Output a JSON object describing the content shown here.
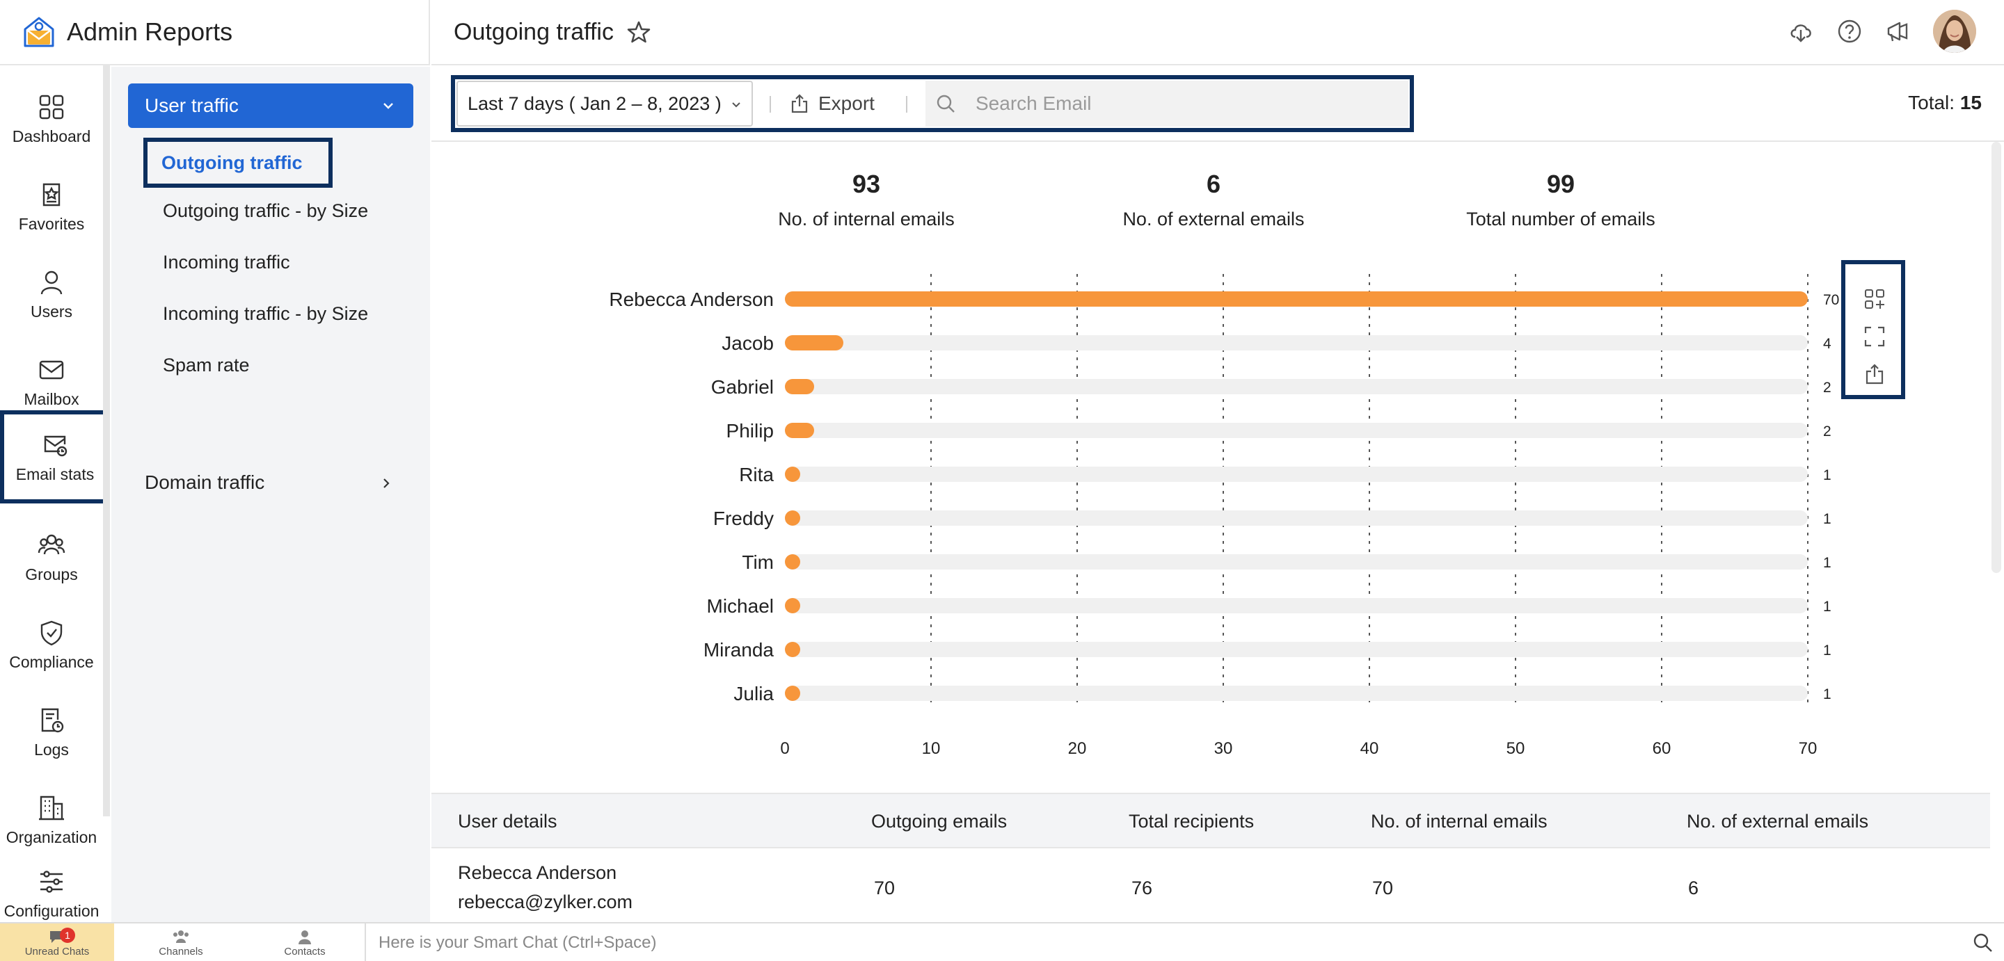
{
  "app": {
    "title": "Admin Reports"
  },
  "header": {
    "page_title": "Outgoing traffic",
    "icons": [
      "download-icon",
      "help-icon",
      "announcement-icon"
    ]
  },
  "rail": {
    "items": [
      {
        "label": "Dashboard",
        "icon": "grid-icon"
      },
      {
        "label": "Favorites",
        "icon": "favorites-icon"
      },
      {
        "label": "Users",
        "icon": "user-icon"
      },
      {
        "label": "Mailbox",
        "icon": "mailbox-icon"
      },
      {
        "label": "Email stats",
        "icon": "email-stats-icon",
        "active": true
      },
      {
        "label": "Groups",
        "icon": "groups-icon"
      },
      {
        "label": "Compliance",
        "icon": "shield-icon"
      },
      {
        "label": "Logs",
        "icon": "logs-icon"
      },
      {
        "label": "Organization",
        "icon": "building-icon"
      },
      {
        "label": "Configuration",
        "icon": "sliders-icon"
      }
    ]
  },
  "subnav": {
    "group": "User traffic",
    "items": [
      "Outgoing traffic",
      "Outgoing traffic - by Size",
      "Incoming traffic",
      "Incoming traffic - by Size",
      "Spam rate"
    ],
    "active": "Outgoing traffic",
    "domain": "Domain traffic"
  },
  "filters": {
    "date_range": "Last 7 days ( Jan 2 – 8, 2023 )",
    "export_label": "Export",
    "search_placeholder": "Search Email",
    "total_label": "Total:",
    "total_value": "15"
  },
  "stats": [
    {
      "value": "93",
      "label": "No. of internal emails"
    },
    {
      "value": "6",
      "label": "No. of external emails"
    },
    {
      "value": "99",
      "label": "Total number of emails"
    }
  ],
  "chart_data": {
    "type": "bar",
    "orientation": "horizontal",
    "categories": [
      "Rebecca Anderson",
      "Jacob",
      "Gabriel",
      "Philip",
      "Rita",
      "Freddy",
      "Tim",
      "Michael",
      "Miranda",
      "Julia"
    ],
    "values": [
      70,
      4,
      2,
      2,
      1,
      1,
      1,
      1,
      1,
      1
    ],
    "xlim": [
      0,
      70
    ],
    "xticks": [
      0,
      10,
      20,
      30,
      40,
      50,
      60,
      70
    ],
    "grid": true,
    "bar_color": "#f7963b",
    "track_color": "#f0f0f0",
    "tools": [
      "add-widget-icon",
      "fullscreen-icon",
      "share-icon"
    ]
  },
  "table": {
    "columns": [
      "User details",
      "Outgoing emails",
      "Total recipients",
      "No. of internal emails",
      "No. of external emails"
    ],
    "rows": [
      {
        "name": "Rebecca Anderson",
        "email": "rebecca@zylker.com",
        "outgoing": "70",
        "recipients": "76",
        "internal": "70",
        "external": "6"
      }
    ]
  },
  "bottombar": {
    "unread_label": "Unread Chats",
    "unread_count": "1",
    "channels_label": "Channels",
    "contacts_label": "Contacts",
    "smartchat_placeholder": "Here is your Smart Chat (Ctrl+Space)"
  },
  "colors": {
    "accent": "#2166d4",
    "highlight_border": "#0d2f5e",
    "bar": "#f7963b"
  }
}
